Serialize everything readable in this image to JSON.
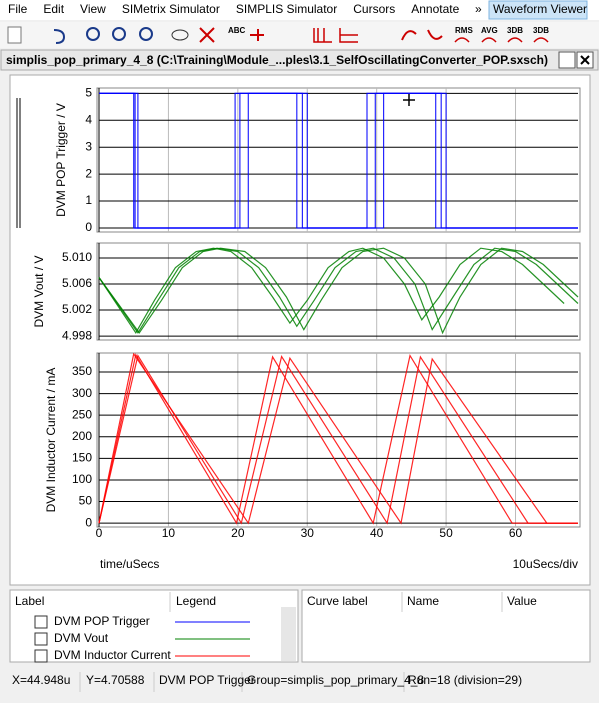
{
  "menu": [
    "File",
    "Edit",
    "View",
    "SIMetrix Simulator",
    "SIMPLIS Simulator",
    "Cursors",
    "Annotate",
    "»",
    "Waveform Viewer"
  ],
  "toolbar": {
    "labels": [
      "ABC",
      "RMS",
      "AVG",
      "3DB",
      "3DB"
    ]
  },
  "title_bar": {
    "title": "simplis_pop_primary_4_8 (C:\\Training\\Module_...ples\\3.1_SelfOscillatingConverter_POP.sxsch)"
  },
  "x_axis": {
    "label": "time/uSecs",
    "division": "10uSecs/div"
  },
  "chart_data": [
    {
      "type": "line",
      "ylabel": "DVM POP Trigger / V",
      "xlim": [
        0,
        69
      ],
      "ylim": [
        -0.15,
        5.2
      ],
      "yticks": [
        0,
        1,
        2,
        3,
        4,
        5
      ],
      "xticks": [
        0,
        10,
        20,
        30,
        40,
        50,
        60
      ],
      "grid": true,
      "series": [
        {
          "name": "DVM POP Trigger",
          "color": "#0000ff",
          "runs": [
            {
              "x": [
                0,
                5.2,
                5.2,
                19.6,
                19.6,
                28.5,
                28.5,
                38.6,
                38.6,
                49.3,
                49.3,
                69
              ],
              "values": [
                5,
                5,
                0,
                0,
                5,
                5,
                0,
                0,
                5,
                5,
                0,
                0
              ]
            },
            {
              "x": [
                0,
                5.6,
                5.6,
                20.3,
                20.3,
                29.3,
                29.3,
                39.8,
                39.8,
                50,
                50,
                69
              ],
              "values": [
                5,
                5,
                0,
                0,
                5,
                5,
                0,
                0,
                5,
                5,
                0,
                0
              ]
            },
            {
              "x": [
                0,
                5.0,
                5.0,
                21.5,
                21.5,
                30,
                30,
                41,
                41,
                48.5,
                48.5,
                69
              ],
              "values": [
                5,
                5,
                0,
                0,
                5,
                5,
                0,
                0,
                5,
                5,
                0,
                0
              ]
            }
          ]
        }
      ]
    },
    {
      "type": "line",
      "ylabel": "DVM Vout / V",
      "xlim": [
        0,
        69
      ],
      "ylim": [
        4.9974,
        5.0123
      ],
      "yticks": [
        4.998,
        5.002,
        5.006,
        {
          "value": 5.01,
          "label": "5.010"
        }
      ],
      "xticks": [
        0,
        10,
        20,
        30,
        40,
        50,
        60
      ],
      "grid": true,
      "series": [
        {
          "name": "DVM Vout",
          "color": "#008000",
          "runs": [
            {
              "x": [
                0,
                5.3,
                8,
                11,
                14,
                16.5,
                19,
                22,
                25,
                27.5,
                30,
                33,
                36,
                38,
                41,
                44,
                46.5,
                49,
                52,
                55,
                58,
                61,
                64,
                67
              ],
              "values": [
                5.007,
                4.9985,
                5.0035,
                5.0085,
                5.011,
                5.0115,
                5.011,
                5.0085,
                5.004,
                5.0,
                5.0035,
                5.0085,
                5.011,
                5.0115,
                5.01,
                5.006,
                5.0005,
                5.004,
                5.009,
                5.0115,
                5.011,
                5.009,
                5.006,
                5.003
              ]
            },
            {
              "x": [
                0,
                5.6,
                8.5,
                11.5,
                14.5,
                17,
                20,
                23,
                26,
                28.5,
                31,
                34,
                37,
                39.5,
                42.5,
                45.5,
                48,
                51,
                54,
                57,
                60,
                63,
                66,
                69
              ],
              "values": [
                5.007,
                4.9985,
                5.0035,
                5.0085,
                5.011,
                5.0115,
                5.011,
                5.0085,
                5.004,
                4.9995,
                5.0035,
                5.0085,
                5.011,
                5.0115,
                5.01,
                5.006,
                4.999,
                5.004,
                5.009,
                5.0115,
                5.011,
                5.009,
                5.006,
                5.003
              ]
            },
            {
              "x": [
                0,
                5.8,
                9,
                12,
                15,
                17.5,
                21,
                24,
                27,
                29.5,
                32,
                35,
                38,
                41,
                44,
                47,
                49.5,
                52,
                55,
                58,
                61,
                64,
                67,
                69
              ],
              "values": [
                5.007,
                4.9985,
                5.0035,
                5.0085,
                5.011,
                5.0115,
                5.011,
                5.0085,
                5.004,
                4.999,
                5.0035,
                5.0085,
                5.011,
                5.0115,
                5.01,
                5.006,
                4.9985,
                5.004,
                5.009,
                5.0115,
                5.011,
                5.009,
                5.006,
                5.004
              ]
            }
          ]
        }
      ]
    },
    {
      "type": "line",
      "ylabel": "DVM Inductor Current / mA",
      "xlim": [
        0,
        69
      ],
      "ylim": [
        -9,
        394
      ],
      "yticks": [
        0,
        50,
        100,
        150,
        200,
        250,
        300,
        350
      ],
      "xticks": [
        0,
        10,
        20,
        30,
        40,
        50,
        60
      ],
      "grid": true,
      "series": [
        {
          "name": "DVM Inductor Current",
          "color": "#ff0000",
          "runs": [
            {
              "x": [
                0,
                5.3,
                19.8,
                25,
                39.5,
                44.8,
                59.5,
                69
              ],
              "values": [
                0,
                390,
                0,
                385,
                0,
                388,
                0,
                0
              ]
            },
            {
              "x": [
                0,
                5.6,
                20.5,
                26.3,
                41.5,
                46.3,
                61.8,
                69
              ],
              "values": [
                0,
                388,
                0,
                386,
                0,
                385,
                0,
                0
              ]
            },
            {
              "x": [
                0,
                5.0,
                21.5,
                27.5,
                43.5,
                48,
                64.5,
                69
              ],
              "values": [
                0,
                392,
                0,
                382,
                0,
                380,
                0,
                0
              ]
            }
          ]
        }
      ]
    }
  ],
  "legend_panel": {
    "headers": [
      "Label",
      "Legend"
    ]
  },
  "values_panel": {
    "headers": [
      "Curve label",
      "Name",
      "Value"
    ]
  },
  "status_bar": [
    "X=44.948u",
    "Y=4.70588",
    "DVM POP Trigger",
    "Group=simplis_pop_primary_4_8",
    "Run=18 (division=29)"
  ]
}
